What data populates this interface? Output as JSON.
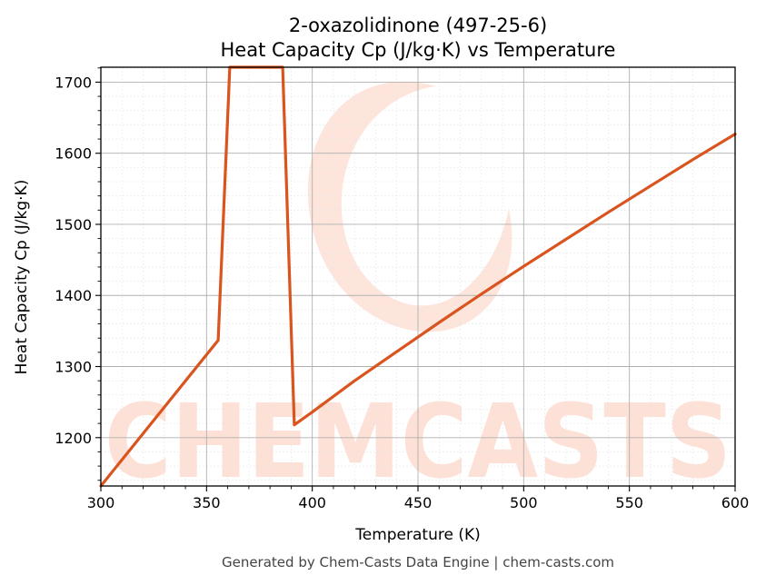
{
  "chart_data": {
    "type": "line",
    "title": "2-oxazolidinone (497-25-6)",
    "subtitle": "Heat Capacity Cp (J/kg·K) vs Temperature",
    "xlabel": "Temperature (K)",
    "ylabel": "Heat Capacity Cp (J/kg·K)",
    "xlim": [
      300,
      600
    ],
    "ylim": [
      1132,
      1721
    ],
    "xticks": [
      300,
      350,
      400,
      450,
      500,
      550,
      600
    ],
    "yticks": [
      1200,
      1300,
      1400,
      1500,
      1600,
      1700
    ],
    "grid": true,
    "minor_grid": true,
    "legend": "none",
    "line_color": "#d9541e",
    "series": [
      {
        "x": [
          300,
          355.5,
          361,
          386,
          391.5,
          400,
          420,
          440,
          460,
          480,
          500,
          520,
          540,
          560,
          580,
          600
        ],
        "y": [
          1132,
          1337,
          1721,
          1721,
          1218,
          1236,
          1280,
          1321,
          1362,
          1402,
          1441,
          1479,
          1517,
          1554,
          1591,
          1627
        ]
      }
    ]
  },
  "watermark": {
    "text": "CHEMCASTS",
    "color": "#fde0d6"
  },
  "footer": "Generated by Chem-Casts Data Engine | chem-casts.com"
}
